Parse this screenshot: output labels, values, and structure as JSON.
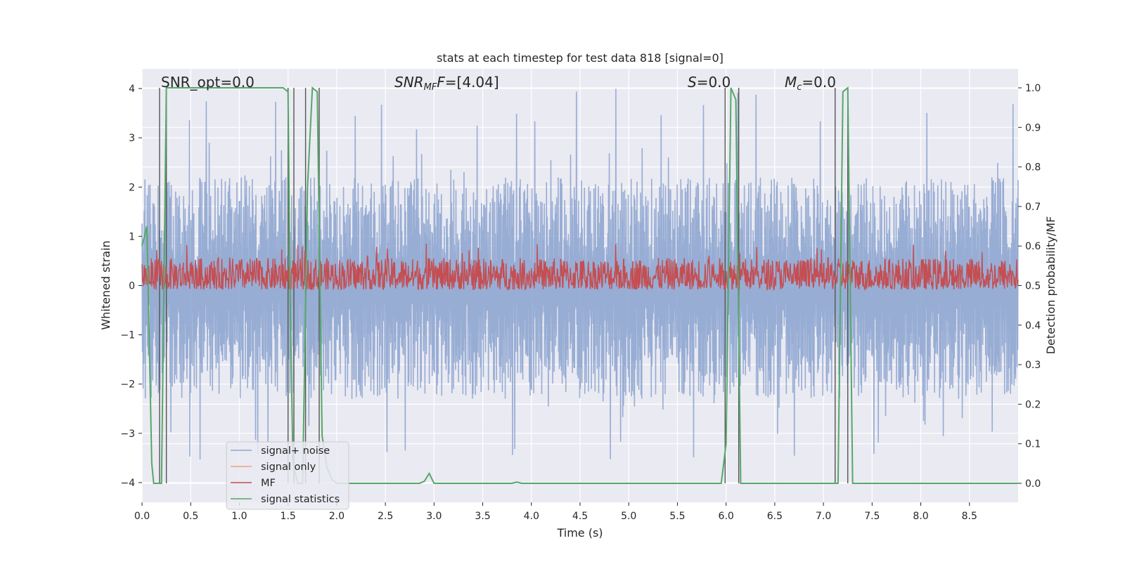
{
  "chart_data": {
    "type": "line",
    "title": "stats at each timestep for test data 818 [signal=0]",
    "xlabel": "Time (s)",
    "ylabel_left": "Whitened strain",
    "ylabel_right": "Detection probability/MF",
    "xlim": [
      0.0,
      9.0
    ],
    "ylim_left": [
      -4.4,
      4.4
    ],
    "ylim_right": [
      -0.048,
      1.048
    ],
    "xticks": [
      "0.0",
      "0.5",
      "1.0",
      "1.5",
      "2.0",
      "2.5",
      "3.0",
      "3.5",
      "4.0",
      "4.5",
      "5.0",
      "5.5",
      "6.0",
      "6.5",
      "7.0",
      "7.5",
      "8.0",
      "8.5"
    ],
    "yticks_left": [
      "4",
      "3",
      "2",
      "1",
      "0",
      "−1",
      "−2",
      "−3",
      "−4"
    ],
    "yticks_right": [
      "1.0",
      "0.9",
      "0.8",
      "0.7",
      "0.6",
      "0.5",
      "0.4",
      "0.3",
      "0.2",
      "0.1",
      "0.0"
    ],
    "grid": true,
    "legend_position": "lower-left",
    "annotations": {
      "snr_opt": "SNR_opt=0.0",
      "snr_mf_base": "SNR",
      "snr_mf_sub": "MF",
      "snr_mf_rest": "=[4.04]",
      "s_base": "S",
      "s_rest": "=0.0",
      "mc_base": "M",
      "mc_sub": "c",
      "mc_rest": "=0.0"
    },
    "series": [
      {
        "name": "signal+ noise",
        "color": "#8fa6d0",
        "axis": "left",
        "envelope": {
          "pos_typical": 2.2,
          "neg_typical": -2.3,
          "max": 4.0,
          "min": -3.6
        }
      },
      {
        "name": "signal only",
        "color": "#f0a27c",
        "axis": "left",
        "values": []
      },
      {
        "name": "MF",
        "color": "#c44e52",
        "axis": "right",
        "range": {
          "min": 0.49,
          "typical_max": 0.57,
          "max": 0.61
        }
      },
      {
        "name": "signal statistics",
        "color": "#55a868",
        "axis": "right",
        "x": [
          0.0,
          0.05,
          0.1,
          0.12,
          0.2,
          0.25,
          1.45,
          1.5,
          1.52,
          1.55,
          1.6,
          1.65,
          1.7,
          1.75,
          1.8,
          1.85,
          1.9,
          1.95,
          2.0,
          2.85,
          2.9,
          2.95,
          3.0,
          3.05,
          3.8,
          3.85,
          3.9,
          3.95,
          5.95,
          6.0,
          6.05,
          6.1,
          6.15,
          7.1,
          7.15,
          7.2,
          7.25,
          7.3,
          9.0
        ],
        "values": [
          0.6,
          0.65,
          0.05,
          0.0,
          0.0,
          1.0,
          1.0,
          0.99,
          0.5,
          0.05,
          0.0,
          0.0,
          0.75,
          1.0,
          0.99,
          0.12,
          0.04,
          0.01,
          0.0,
          0.0,
          0.005,
          0.025,
          0.0,
          0.0,
          0.0,
          0.003,
          0.0,
          0.0,
          0.0,
          0.1,
          1.0,
          0.97,
          0.0,
          0.0,
          0.0,
          0.99,
          1.0,
          0.0,
          0.0
        ]
      }
    ],
    "vertical_lines": [
      0.18,
      0.25,
      1.5,
      1.56,
      1.68,
      1.82,
      5.99,
      6.13,
      7.12,
      7.25
    ],
    "vline_color": "#555555"
  }
}
